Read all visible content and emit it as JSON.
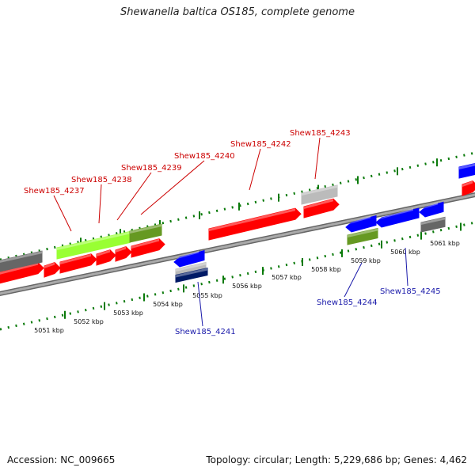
{
  "title": "Shewanella baltica OS185, complete genome",
  "footer": {
    "accession": "Accession: NC_009665",
    "summary": "Topology: circular; Length: 5,229,686 bp; Genes: 4,462"
  },
  "colors": {
    "forward": "#ff0000",
    "reverse": "#0000ff",
    "label_forward": "#cc0000",
    "label_reverse": "#1a1aaa",
    "ruler": "#007700",
    "backbone": "#888888"
  },
  "ticks": [
    {
      "label": "5051 kbp"
    },
    {
      "label": "5052 kbp"
    },
    {
      "label": "5053 kbp"
    },
    {
      "label": "5054 kbp"
    },
    {
      "label": "5055 kbp"
    },
    {
      "label": "5056 kbp"
    },
    {
      "label": "5057 kbp"
    },
    {
      "label": "5058 kbp"
    },
    {
      "label": "5059 kbp"
    },
    {
      "label": "5060 kbp"
    },
    {
      "label": "5061 kbp"
    }
  ],
  "gene_labels": {
    "forward": [
      "Shew185_4237",
      "Shew185_4238",
      "Shew185_4239",
      "Shew185_4240",
      "Shew185_4242",
      "Shew185_4243"
    ],
    "reverse": [
      "Shew185_4241",
      "Shew185_4244",
      "Shew185_4245"
    ]
  }
}
